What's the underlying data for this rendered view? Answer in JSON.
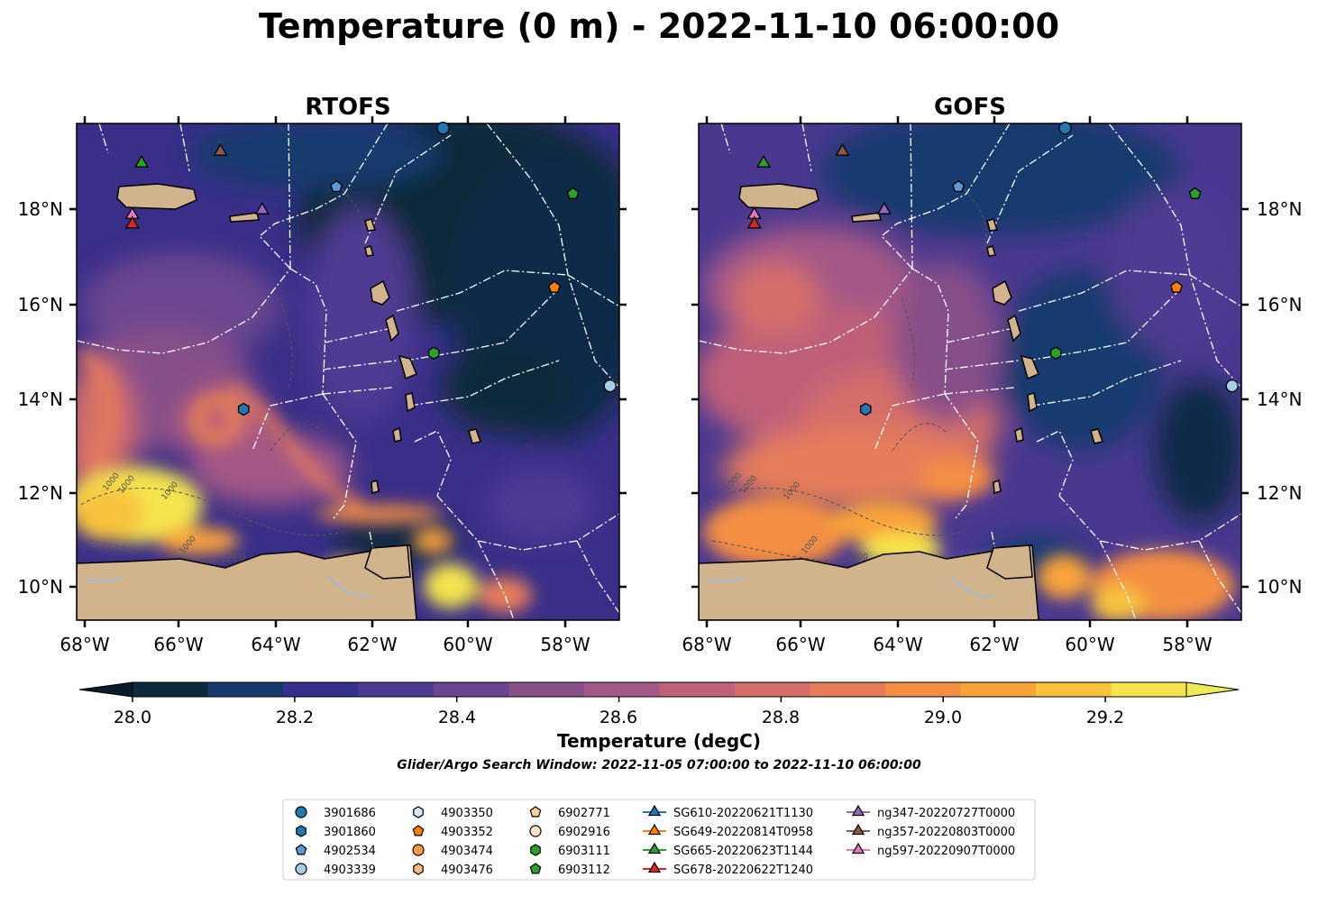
{
  "title": "Temperature (0 m) - 2022-11-10 06:00:00",
  "panels": [
    {
      "id": "rtofs",
      "title": "RTOFS"
    },
    {
      "id": "gofs",
      "title": "GOFS"
    }
  ],
  "lon_ticks": [
    "68°W",
    "66°W",
    "64°W",
    "62°W",
    "60°W",
    "58°W"
  ],
  "lat_ticks": [
    "18°N",
    "16°N",
    "14°N",
    "12°N",
    "10°N"
  ],
  "map_extent": {
    "lon": [
      -68.2,
      -56.5
    ],
    "lat": [
      9.2,
      19.8
    ]
  },
  "colorbar": {
    "label": "Temperature (degC)",
    "ticks": [
      "28.0",
      "28.2",
      "28.4",
      "28.6",
      "28.8",
      "29.0",
      "29.2"
    ],
    "range": [
      28.0,
      29.3
    ],
    "step": 0.1,
    "extend": "both",
    "colors": [
      "#0b2a3b",
      "#173a6e",
      "#35308f",
      "#4f3b93",
      "#6b4690",
      "#875089",
      "#a45987",
      "#bf6178",
      "#d46e68",
      "#e67d5a",
      "#f48e43",
      "#f8a23a",
      "#f8c23d",
      "#f5e44d"
    ],
    "under_color": "#061c28",
    "over_color": "#eceb55"
  },
  "contour_labels": [
    "1000",
    "1000",
    "1000",
    "1000",
    "1000"
  ],
  "subtitle": "Glider/Argo Search Window: 2022-11-05 07:00:00 to 2022-11-10 06:00:00",
  "legend": [
    {
      "label": "3901686",
      "marker": "circle",
      "color": "#1f77b4",
      "line": false
    },
    {
      "label": "3901860",
      "marker": "hexagon",
      "color": "#1f77b4",
      "line": false
    },
    {
      "label": "4902534",
      "marker": "pentagon",
      "color": "#5b9bd5",
      "line": false
    },
    {
      "label": "4903339",
      "marker": "circle",
      "color": "#a6cee3",
      "line": false
    },
    {
      "label": "4903350",
      "marker": "hexagon",
      "color": "#d6eaf8",
      "line": false
    },
    {
      "label": "4903352",
      "marker": "pentagon",
      "color": "#ff7f0e",
      "line": false
    },
    {
      "label": "4903474",
      "marker": "circle",
      "color": "#ff9a3c",
      "line": false
    },
    {
      "label": "4903476",
      "marker": "hexagon",
      "color": "#ffbb78",
      "line": false
    },
    {
      "label": "6902771",
      "marker": "pentagon",
      "color": "#ffcfa0",
      "line": false
    },
    {
      "label": "6902916",
      "marker": "circle",
      "color": "#ffe4c8",
      "line": false
    },
    {
      "label": "6903111",
      "marker": "hexagon",
      "color": "#2ca02c",
      "line": false
    },
    {
      "label": "6903112",
      "marker": "pentagon",
      "color": "#2ca02c",
      "line": false
    },
    {
      "label": "SG610-20220621T1130",
      "marker": "triangle",
      "color": "#1f77b4",
      "line": true
    },
    {
      "label": "SG649-20220814T0958",
      "marker": "triangle",
      "color": "#ff7f0e",
      "line": true
    },
    {
      "label": "SG665-20220623T1144",
      "marker": "triangle",
      "color": "#2ca02c",
      "line": true
    },
    {
      "label": "SG678-20220622T1240",
      "marker": "triangle",
      "color": "#d62728",
      "line": true
    },
    {
      "label": "ng347-20220727T0000",
      "marker": "triangle",
      "color": "#9467bd",
      "line": true
    },
    {
      "label": "ng357-20220803T0000",
      "marker": "triangle",
      "color": "#8c564b",
      "line": true
    },
    {
      "label": "ng597-20220907T0000",
      "marker": "triangle",
      "color": "#e377c2",
      "line": true
    }
  ],
  "observations": [
    {
      "label": "3901686",
      "lon": -60.3,
      "lat": 19.7,
      "marker": "circle",
      "color": "#1f77b4"
    },
    {
      "label": "3901860",
      "lon": -64.6,
      "lat": 13.7,
      "marker": "hexagon",
      "color": "#1f77b4"
    },
    {
      "label": "4902534",
      "lon": -62.6,
      "lat": 18.45,
      "marker": "pentagon",
      "color": "#5b9bd5"
    },
    {
      "label": "4903339",
      "lon": -56.7,
      "lat": 14.2,
      "marker": "circle",
      "color": "#a6cee3"
    },
    {
      "label": "6903111",
      "lon": -60.5,
      "lat": 14.9,
      "marker": "hexagon",
      "color": "#2ca02c"
    },
    {
      "label": "6903112",
      "lon": -57.5,
      "lat": 18.3,
      "marker": "pentagon",
      "color": "#2ca02c"
    },
    {
      "label": "4903352",
      "lon": -57.9,
      "lat": 16.3,
      "marker": "pentagon",
      "color": "#ff7f0e"
    },
    {
      "label": "SG665-20220623T1144",
      "lon": -66.8,
      "lat": 18.95,
      "marker": "triangle",
      "color": "#2ca02c"
    },
    {
      "label": "ng357-20220803T0000",
      "lon": -65.1,
      "lat": 19.2,
      "marker": "triangle",
      "color": "#8c564b"
    },
    {
      "label": "ng347-20220727T0000",
      "lon": -64.2,
      "lat": 17.95,
      "marker": "triangle",
      "color": "#9467bd"
    },
    {
      "label": "ng597-20220907T0000",
      "lon": -67.0,
      "lat": 17.85,
      "marker": "triangle",
      "color": "#e377c2"
    },
    {
      "label": "SG678-20220622T1240",
      "lon": -67.0,
      "lat": 17.65,
      "marker": "triangle",
      "color": "#d62728"
    }
  ]
}
